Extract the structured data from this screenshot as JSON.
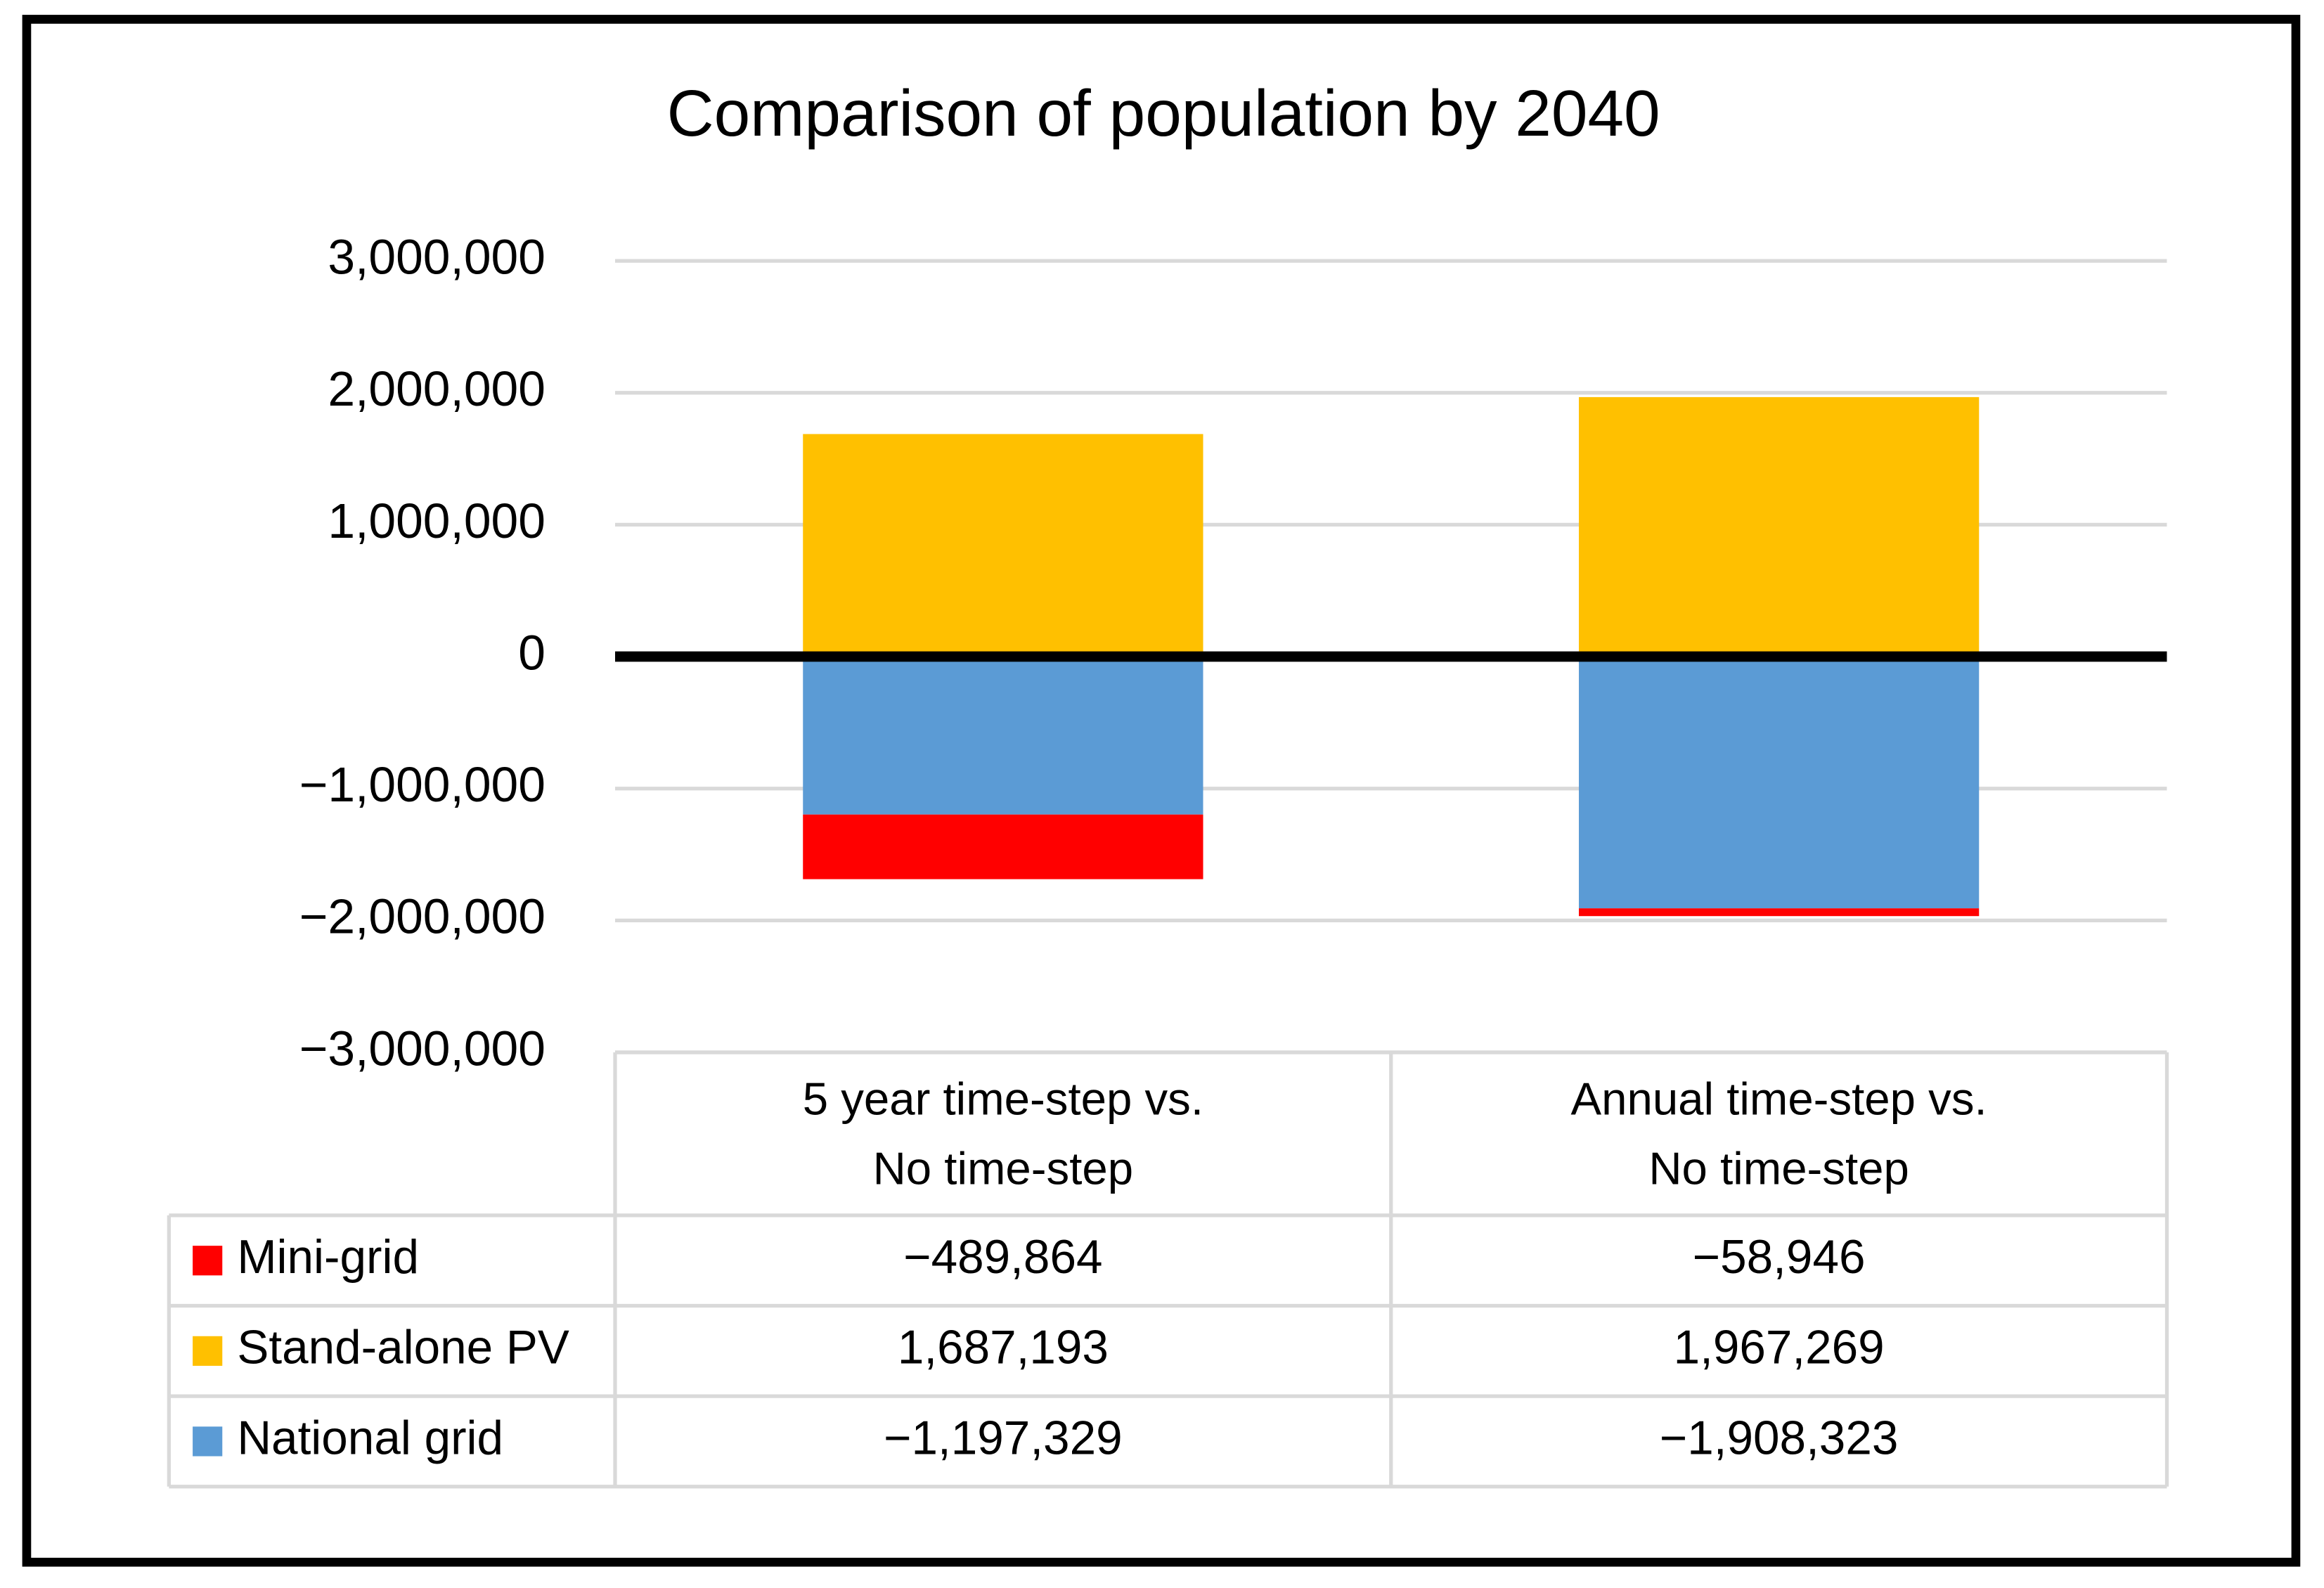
{
  "chart_data": {
    "type": "stacked_bar",
    "title": "Comparison of population by 2040",
    "categories": [
      "5 year time-step vs.\nNo time-step",
      "Annual time-step vs.\nNo time-step"
    ],
    "series": [
      {
        "name": "Mini-grid",
        "color": "#ff0000",
        "values": [
          -489864,
          -58946
        ],
        "value_labels": [
          "−489,864",
          "−58,946"
        ]
      },
      {
        "name": "Stand-alone PV",
        "color": "#ffc000",
        "values": [
          1687193,
          1967269
        ],
        "value_labels": [
          "1,687,193",
          "1,967,269"
        ]
      },
      {
        "name": "National grid",
        "color": "#5b9bd5",
        "values": [
          -1197329,
          -1908323
        ],
        "value_labels": [
          "−1,197,329",
          "−1,908,323"
        ]
      }
    ],
    "ylim": [
      -3000000,
      3000000
    ],
    "yticks": [
      {
        "value": -3000000,
        "label": "−3,000,000"
      },
      {
        "value": -2000000,
        "label": "−2,000,000"
      },
      {
        "value": -1000000,
        "label": "−1,000,000"
      },
      0,
      {
        "value": 1000000,
        "label": "1,000,000"
      },
      {
        "value": 2000000,
        "label": "2,000,000"
      },
      {
        "value": 3000000,
        "label": "3,000,000"
      }
    ],
    "grid": true
  }
}
